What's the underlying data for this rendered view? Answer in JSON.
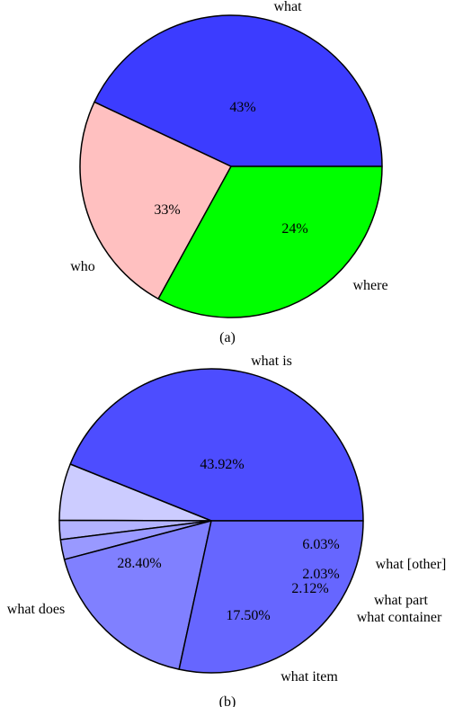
{
  "chart_data": [
    {
      "type": "pie",
      "caption": "(a)",
      "slices": [
        {
          "label": "what",
          "value": 43,
          "value_label": "43%",
          "color": "#3c3cff"
        },
        {
          "label": "where",
          "value": 24,
          "value_label": "24%",
          "color": "#ffc0c0"
        },
        {
          "label": "who",
          "value": 33,
          "value_label": "33%",
          "color": "#00ff00"
        }
      ]
    },
    {
      "type": "pie",
      "caption": "(b)",
      "slices": [
        {
          "label": "what is",
          "value": 43.92,
          "value_label": "43.92%",
          "color": "#4d4dff"
        },
        {
          "label": "what [other]",
          "value": 6.03,
          "value_label": "6.03%",
          "color": "#ccccff"
        },
        {
          "label": "what part",
          "value": 2.03,
          "value_label": "2.03%",
          "color": "#b3b3ff"
        },
        {
          "label": "what container",
          "value": 2.12,
          "value_label": "2.12%",
          "color": "#9999ff"
        },
        {
          "label": "what item",
          "value": 17.5,
          "value_label": "17.50%",
          "color": "#8080ff"
        },
        {
          "label": "what does",
          "value": 28.4,
          "value_label": "28.40%",
          "color": "#6666ff"
        }
      ]
    }
  ]
}
